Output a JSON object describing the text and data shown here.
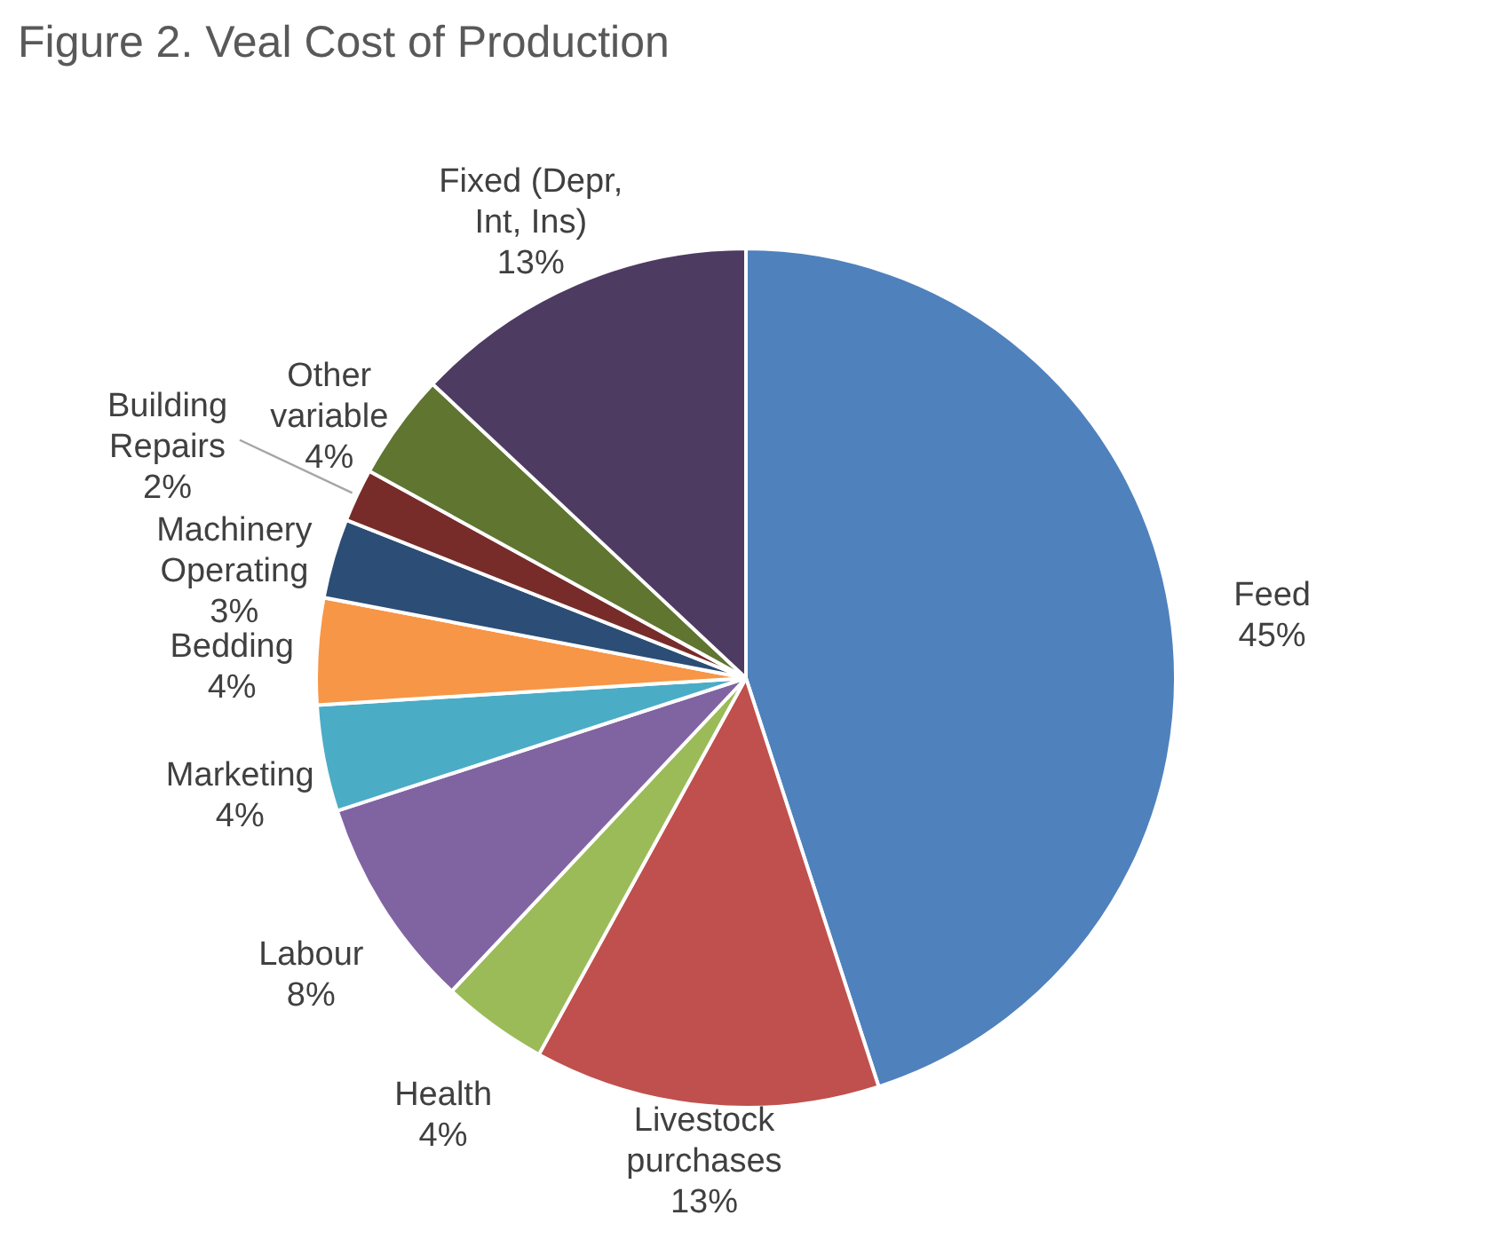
{
  "chart_data": {
    "type": "pie",
    "title": "Figure 2. Veal Cost of Production",
    "categories": [
      "Feed",
      "Livestock purchases",
      "Health",
      "Labour",
      "Marketing",
      "Bedding",
      "Machinery Operating",
      "Building Repairs",
      "Other variable",
      "Fixed (Depr, Int, Ins)"
    ],
    "values": [
      45,
      13,
      4,
      8,
      4,
      4,
      3,
      2,
      4,
      13
    ],
    "value_labels": [
      "45%",
      "13%",
      "4%",
      "8%",
      "4%",
      "4%",
      "3%",
      "2%",
      "4%",
      "13%"
    ],
    "colors": [
      "#4f81bd",
      "#c0504d",
      "#9bbb59",
      "#8064a2",
      "#4bacc6",
      "#f79646",
      "#2c4d75",
      "#772c2a",
      "#5f7530",
      "#4d3b62"
    ]
  }
}
